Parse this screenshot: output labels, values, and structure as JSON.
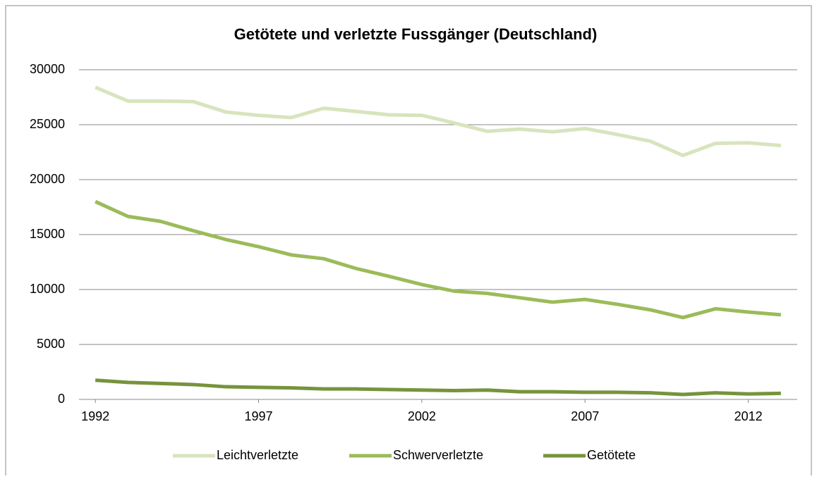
{
  "chart_data": {
    "type": "line",
    "title": "Getötete und verletzte Fussgänger (Deutschland)",
    "x": [
      1992,
      1993,
      1994,
      1995,
      1996,
      1997,
      1998,
      1999,
      2000,
      2001,
      2002,
      2003,
      2004,
      2005,
      2006,
      2007,
      2008,
      2009,
      2010,
      2011,
      2012,
      2013
    ],
    "xlim": [
      1991.5,
      2013.5
    ],
    "xticks": [
      1992,
      1997,
      2002,
      2007,
      2012
    ],
    "ylim": [
      0,
      30000
    ],
    "yticks": [
      0,
      5000,
      10000,
      15000,
      20000,
      25000,
      30000
    ],
    "grid": true,
    "legend": "bottom",
    "series": [
      {
        "name": "Leichtverletzte",
        "color": "#d7e4bd",
        "values": [
          28400,
          27150,
          27150,
          27100,
          26150,
          25850,
          25650,
          26500,
          26200,
          25900,
          25850,
          25150,
          24400,
          24600,
          24350,
          24650,
          24100,
          23500,
          22200,
          23300,
          23350,
          23100
        ]
      },
      {
        "name": "Schwerverletzte",
        "color": "#9bbb59",
        "values": [
          18000,
          16650,
          16200,
          15350,
          14550,
          13900,
          13150,
          12800,
          11900,
          11200,
          10450,
          9850,
          9650,
          9250,
          8850,
          9100,
          8650,
          8150,
          7450,
          8250,
          7950,
          7700
        ]
      },
      {
        "name": "Getötete",
        "color": "#77933c",
        "values": [
          1750,
          1550,
          1450,
          1350,
          1150,
          1100,
          1050,
          950,
          950,
          900,
          850,
          800,
          850,
          700,
          700,
          650,
          650,
          600,
          450,
          600,
          500,
          550
        ]
      }
    ]
  }
}
